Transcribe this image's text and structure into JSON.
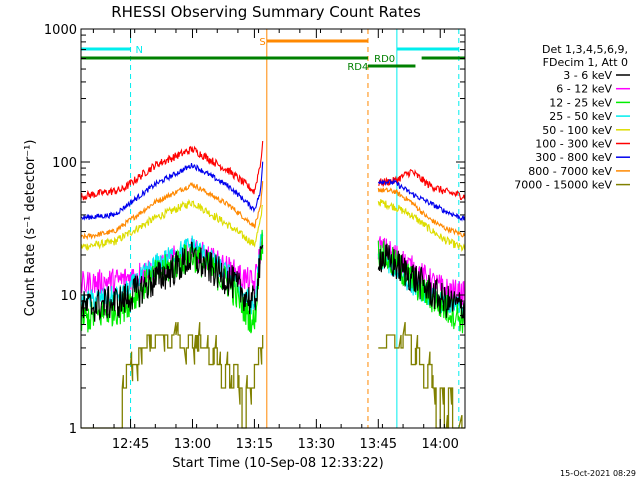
{
  "chart_data": {
    "type": "line",
    "title": "RHESSI Observing Summary Count Rates",
    "xlabel": "Start Time (10-Sep-08 12:33:22)",
    "ylabel": "Count Rate (s⁻¹ detector⁻¹)",
    "yscale": "log",
    "ylim": [
      1,
      1000
    ],
    "y_ticks": [
      "1",
      "10",
      "100",
      "1000"
    ],
    "xlim_minutes": [
      0,
      93
    ],
    "x_ticks": [
      {
        "t": 12,
        "label": "12:45"
      },
      {
        "t": 27,
        "label": "13:00"
      },
      {
        "t": 42,
        "label": "13:15"
      },
      {
        "t": 57,
        "label": "13:30"
      },
      {
        "t": 72,
        "label": "13:45"
      },
      {
        "t": 87,
        "label": "14:00"
      }
    ],
    "legend_header": [
      "Det 1,3,4,5,6,9,",
      "FDecim 1, Att 0"
    ],
    "footer_date": "15-Oct-2021 08:29",
    "series": [
      {
        "name": "3 - 6 keV",
        "color": "#000000",
        "noise": 0.13,
        "pts": [
          [
            0,
            8
          ],
          [
            10,
            9
          ],
          [
            18,
            13
          ],
          [
            27,
            19
          ],
          [
            36,
            13
          ],
          [
            42,
            8.5
          ],
          [
            43.5,
            18
          ],
          [
            44,
            22
          ]
        ],
        "pts2": [
          [
            72,
            20
          ],
          [
            76,
            17
          ],
          [
            80,
            14
          ],
          [
            84,
            11
          ],
          [
            88,
            9
          ],
          [
            93,
            8
          ]
        ]
      },
      {
        "name": "6 - 12 keV",
        "color": "#ff00ff",
        "noise": 0.1,
        "pts": [
          [
            0,
            12
          ],
          [
            10,
            13
          ],
          [
            18,
            16
          ],
          [
            27,
            22
          ],
          [
            36,
            15.5
          ],
          [
            42,
            12
          ],
          [
            43.5,
            22
          ],
          [
            44,
            26
          ]
        ],
        "pts2": [
          [
            72,
            23
          ],
          [
            76,
            20
          ],
          [
            80,
            16
          ],
          [
            84,
            13
          ],
          [
            88,
            11
          ],
          [
            93,
            10
          ]
        ]
      },
      {
        "name": "12 - 25 keV",
        "color": "#00ee00",
        "noise": 0.12,
        "pts": [
          [
            0,
            6.5
          ],
          [
            10,
            8
          ],
          [
            18,
            14
          ],
          [
            27,
            20
          ],
          [
            36,
            12
          ],
          [
            42,
            6
          ],
          [
            43.5,
            22
          ],
          [
            44,
            26
          ]
        ],
        "pts2": [
          [
            72,
            21
          ],
          [
            76,
            17
          ],
          [
            80,
            13
          ],
          [
            84,
            10
          ],
          [
            88,
            8
          ],
          [
            93,
            6.5
          ]
        ]
      },
      {
        "name": "25 - 50 keV",
        "color": "#00eeee",
        "noise": 0.08,
        "pts": [
          [
            0,
            9
          ],
          [
            10,
            10
          ],
          [
            18,
            17
          ],
          [
            27,
            24
          ],
          [
            36,
            14
          ],
          [
            42,
            8
          ],
          [
            43.5,
            24
          ],
          [
            44,
            27
          ]
        ],
        "pts2": [
          [
            72,
            19
          ],
          [
            76,
            16
          ],
          [
            80,
            12
          ],
          [
            84,
            10
          ],
          [
            88,
            8.5
          ],
          [
            93,
            8
          ]
        ]
      },
      {
        "name": "50 - 100 keV",
        "color": "#dddd00",
        "noise": 0.03,
        "pts": [
          [
            0,
            23
          ],
          [
            8,
            25
          ],
          [
            18,
            38
          ],
          [
            27,
            50
          ],
          [
            36,
            33
          ],
          [
            42,
            24
          ],
          [
            43.5,
            36
          ],
          [
            44,
            50
          ]
        ],
        "pts2": [
          [
            72,
            50
          ],
          [
            76,
            46
          ],
          [
            80,
            40
          ],
          [
            84,
            32
          ],
          [
            88,
            26
          ],
          [
            93,
            22
          ]
        ]
      },
      {
        "name": "100 - 300 keV",
        "color": "#ff0000",
        "noise": 0.03,
        "pts": [
          [
            0,
            55
          ],
          [
            10,
            62
          ],
          [
            18,
            95
          ],
          [
            27,
            125
          ],
          [
            36,
            85
          ],
          [
            42,
            60
          ],
          [
            43.5,
            100
          ],
          [
            44,
            135
          ]
        ],
        "pts2": [
          [
            72,
            70
          ],
          [
            76,
            72
          ],
          [
            80,
            85
          ],
          [
            84,
            68
          ],
          [
            88,
            60
          ],
          [
            93,
            55
          ]
        ]
      },
      {
        "name": "300 - 800 keV",
        "color": "#0000ee",
        "noise": 0.02,
        "pts": [
          [
            0,
            38
          ],
          [
            8,
            40
          ],
          [
            18,
            68
          ],
          [
            27,
            95
          ],
          [
            36,
            65
          ],
          [
            42,
            44
          ],
          [
            43.5,
            60
          ],
          [
            44,
            100
          ]
        ],
        "pts2": [
          [
            72,
            72
          ],
          [
            76,
            70
          ],
          [
            80,
            58
          ],
          [
            84,
            50
          ],
          [
            88,
            43
          ],
          [
            93,
            37
          ]
        ]
      },
      {
        "name": "800 - 7000 keV",
        "color": "#ff8800",
        "noise": 0.02,
        "pts": [
          [
            0,
            27
          ],
          [
            8,
            30
          ],
          [
            18,
            50
          ],
          [
            27,
            68
          ],
          [
            36,
            47
          ],
          [
            42,
            33
          ],
          [
            43.5,
            45
          ],
          [
            44,
            70
          ]
        ],
        "pts2": [
          [
            72,
            62
          ],
          [
            76,
            60
          ],
          [
            80,
            50
          ],
          [
            84,
            38
          ],
          [
            88,
            32
          ],
          [
            93,
            28
          ]
        ]
      },
      {
        "name": "7000 - 15000 keV",
        "color": "#808000",
        "noise": 0,
        "steps": [
          [
            0,
            1
          ],
          [
            9,
            1
          ],
          [
            10,
            2
          ],
          [
            11,
            3
          ],
          [
            12,
            3
          ],
          [
            13,
            3
          ],
          [
            14,
            4
          ],
          [
            15,
            4
          ],
          [
            16,
            5
          ],
          [
            17,
            4
          ],
          [
            18,
            5
          ],
          [
            20,
            5
          ],
          [
            21,
            4
          ],
          [
            22,
            5
          ],
          [
            24,
            4
          ],
          [
            26,
            5
          ],
          [
            27,
            4
          ],
          [
            28,
            5
          ],
          [
            29,
            4
          ],
          [
            30,
            4
          ],
          [
            31,
            3
          ],
          [
            32,
            4
          ],
          [
            33,
            3
          ],
          [
            34,
            2
          ],
          [
            35,
            3
          ],
          [
            36,
            2
          ],
          [
            37,
            3
          ],
          [
            38,
            2
          ],
          [
            39,
            1
          ],
          [
            40,
            2
          ],
          [
            41,
            2
          ],
          [
            42,
            3
          ],
          [
            43,
            4
          ],
          [
            44,
            5
          ]
        ],
        "steps2": [
          [
            72,
            4
          ],
          [
            74,
            5
          ],
          [
            76,
            4
          ],
          [
            78,
            5
          ],
          [
            80,
            3
          ],
          [
            81,
            4
          ],
          [
            82,
            3
          ],
          [
            83,
            2
          ],
          [
            84,
            3
          ],
          [
            85,
            2
          ],
          [
            86,
            1
          ],
          [
            87,
            2
          ],
          [
            88,
            1
          ],
          [
            89,
            2
          ],
          [
            90,
            1
          ],
          [
            93,
            1
          ]
        ]
      }
    ],
    "annotations": {
      "vlines": [
        {
          "t": 0,
          "color": "#00eeee",
          "dash": false
        },
        {
          "t": 12,
          "color": "#00eeee",
          "dash": true
        },
        {
          "t": 45,
          "color": "#ff8800",
          "dash": false
        },
        {
          "t": 69.5,
          "color": "#ff8800",
          "dash": true
        },
        {
          "t": 76.5,
          "color": "#00eeee",
          "dash": false
        },
        {
          "t": 91.5,
          "color": "#00eeee",
          "dash": true
        }
      ],
      "bars": [
        {
          "t0": 0,
          "t1": 12,
          "label": "N",
          "label_t": 13.2,
          "color": "#00eeee",
          "row": 0
        },
        {
          "t0": 76.5,
          "t1": 91.5,
          "label": "",
          "label_t": 0,
          "color": "#00eeee",
          "row": 0
        },
        {
          "t0": 45,
          "t1": 69.5,
          "label": "S",
          "label_t": 43.2,
          "color": "#ff8800",
          "row": -1
        },
        {
          "t0": 0,
          "t1": 69.5,
          "label": "RD0",
          "label_t": 71,
          "color": "#008000",
          "row": 1
        },
        {
          "t0": 69.5,
          "t1": 81,
          "label": "RD4",
          "label_t": 64.5,
          "color": "#008000",
          "row": 2
        },
        {
          "t0": 82.5,
          "t1": 93,
          "label": "",
          "label_t": 0,
          "color": "#008000",
          "row": 1
        }
      ]
    }
  }
}
